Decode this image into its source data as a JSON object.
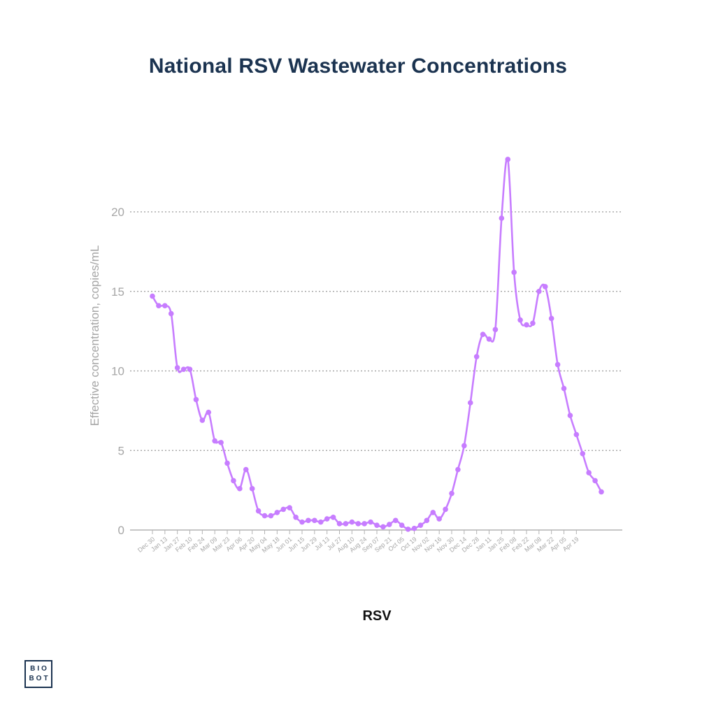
{
  "title": "National RSV Wastewater Concentrations",
  "legend_label": "RSV",
  "logo": {
    "line1": "BIO",
    "line2": "BOT"
  },
  "colors": {
    "line": "#c77dff",
    "title": "#1b3350",
    "grid": "#9a9a9a",
    "axis_text": "#a6a6a6"
  },
  "chart_data": {
    "type": "line",
    "title": "National RSV Wastewater Concentrations",
    "ylabel": "Effective concentration, copies/mL",
    "xlabel": "",
    "ylim": [
      0,
      23.5
    ],
    "yticks": [
      0,
      5,
      10,
      15,
      20
    ],
    "grid": true,
    "legend_position": "bottom",
    "tick_labels": [
      "Dec 30",
      "Jan 13",
      "Jan 27",
      "Feb 10",
      "Feb 24",
      "Mar 09",
      "Mar 23",
      "Apr 06",
      "Apr 20",
      "May 04",
      "May 18",
      "Jun 01",
      "Jun 15",
      "Jun 29",
      "Jul 13",
      "Jul 27",
      "Aug 10",
      "Aug 24",
      "Sep 07",
      "Sep 21",
      "Oct 05",
      "Oct 19",
      "Nov 02",
      "Nov 16",
      "Nov 30",
      "Dec 14",
      "Dec 28",
      "Jan 11",
      "Jan 25",
      "Feb 08",
      "Feb 22",
      "Mar 08",
      "Mar 22",
      "Apr 05",
      "Apr 19"
    ],
    "series": [
      {
        "name": "RSV",
        "values": [
          14.7,
          14.1,
          14.1,
          13.6,
          10.2,
          10.1,
          10.1,
          8.2,
          6.9,
          7.4,
          5.6,
          5.5,
          4.2,
          3.1,
          2.6,
          3.8,
          2.6,
          1.2,
          0.9,
          0.9,
          1.1,
          1.3,
          1.4,
          0.8,
          0.5,
          0.6,
          0.6,
          0.5,
          0.7,
          0.8,
          0.4,
          0.4,
          0.5,
          0.4,
          0.4,
          0.5,
          0.3,
          0.2,
          0.35,
          0.6,
          0.3,
          0.05,
          0.1,
          0.3,
          0.6,
          1.1,
          0.7,
          1.3,
          2.3,
          3.8,
          5.3,
          8.0,
          10.9,
          12.3,
          12.0,
          12.6,
          19.6,
          23.3,
          16.2,
          13.2,
          12.9,
          13.0,
          15.0,
          15.3,
          13.3,
          10.4,
          8.9,
          7.2,
          6.0,
          4.8,
          3.6,
          3.1,
          2.4
        ]
      }
    ]
  }
}
